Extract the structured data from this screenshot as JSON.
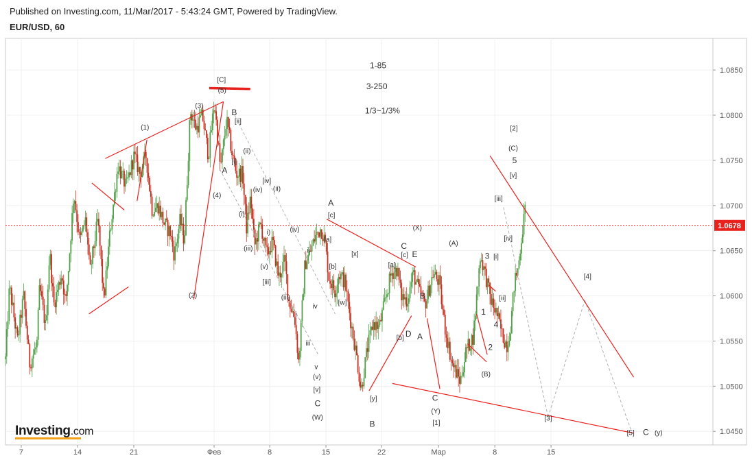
{
  "header": {
    "published": "Published on Investing.com, 11/Mar/2017 - 5:43:24 GMT, Powered by TradingView.",
    "symbol": "EUR/USD, 60"
  },
  "logo": {
    "name": "Investing",
    "suffix": ".com"
  },
  "colors": {
    "up": "#52a049",
    "down": "#c4301f",
    "wave_line": "#e8211d",
    "dashed": "#b0b0b0",
    "price_tag_bg": "#e8211d",
    "axis_text": "#555555",
    "frame": "#c8c8c8"
  },
  "chart_data": {
    "type": "candlestick",
    "ylim": [
      1.0435,
      1.0885
    ],
    "y_ticks": [
      "1.0450",
      "1.0500",
      "1.0550",
      "1.0600",
      "1.0650",
      "1.0700",
      "1.0750",
      "1.0800",
      "1.0850"
    ],
    "x_tick_labels": [
      "7",
      "14",
      "21",
      "Фев",
      "8",
      "15",
      "22",
      "Мар",
      "8",
      "15"
    ],
    "current_price": "1.0678",
    "notes": [
      "1-85",
      "3-250",
      "1/3~1/3%"
    ],
    "price_path": [
      [
        0.0,
        1.053
      ],
      [
        0.01,
        1.061
      ],
      [
        0.03,
        1.055
      ],
      [
        0.045,
        1.06
      ],
      [
        0.06,
        1.0525
      ],
      [
        0.078,
        1.0545
      ],
      [
        0.085,
        1.061
      ],
      [
        0.1,
        1.0565
      ],
      [
        0.11,
        1.065
      ],
      [
        0.12,
        1.059
      ],
      [
        0.14,
        1.0625
      ],
      [
        0.15,
        1.059
      ],
      [
        0.16,
        1.065
      ],
      [
        0.17,
        1.0715
      ],
      [
        0.185,
        1.066
      ],
      [
        0.2,
        1.0685
      ],
      [
        0.21,
        1.0625
      ],
      [
        0.23,
        1.0685
      ],
      [
        0.245,
        1.0595
      ],
      [
        0.26,
        1.067
      ],
      [
        0.28,
        1.0745
      ],
      [
        0.3,
        1.072
      ],
      [
        0.32,
        1.0755
      ],
      [
        0.335,
        1.0735
      ],
      [
        0.35,
        1.0755
      ],
      [
        0.365,
        1.0695
      ],
      [
        0.38,
        1.07
      ],
      [
        0.395,
        1.068
      ],
      [
        0.41,
        1.067
      ],
      [
        0.42,
        1.0645
      ],
      [
        0.435,
        1.0685
      ],
      [
        0.445,
        1.066
      ],
      [
        0.46,
        1.0805
      ],
      [
        0.475,
        1.0785
      ],
      [
        0.49,
        1.08
      ],
      [
        0.505,
        1.0755
      ],
      [
        0.52,
        1.0815
      ],
      [
        0.535,
        1.074
      ],
      [
        0.55,
        1.0795
      ],
      [
        0.565,
        1.0755
      ],
      [
        0.575,
        1.0735
      ],
      [
        0.59,
        1.0735
      ],
      [
        0.6,
        1.0675
      ],
      [
        0.61,
        1.071
      ],
      [
        0.62,
        1.0655
      ],
      [
        0.635,
        1.068
      ],
      [
        0.65,
        1.0645
      ],
      [
        0.665,
        1.066
      ],
      [
        0.68,
        1.062
      ],
      [
        0.695,
        1.064
      ],
      [
        0.705,
        1.0595
      ],
      [
        0.72,
        1.0575
      ],
      [
        0.73,
        1.0525
      ],
      [
        0.745,
        1.0635
      ],
      [
        0.76,
        1.065
      ],
      [
        0.77,
        1.0665
      ],
      [
        0.785,
        1.0675
      ],
      [
        0.795,
        1.066
      ],
      [
        0.805,
        1.062
      ],
      [
        0.82,
        1.0605
      ],
      [
        0.83,
        1.0625
      ],
      [
        0.845,
        1.0615
      ],
      [
        0.86,
        1.057
      ],
      [
        0.875,
        1.053
      ],
      [
        0.885,
        1.0495
      ],
      [
        0.9,
        1.054
      ],
      [
        0.915,
        1.057
      ],
      [
        0.93,
        1.0565
      ],
      [
        0.945,
        1.0595
      ],
      [
        0.96,
        1.0625
      ],
      [
        0.975,
        1.063
      ],
      [
        0.985,
        1.06
      ],
      [
        1.0,
        1.0595
      ]
    ],
    "price_path_2": [
      [
        0.0,
        1.0595
      ],
      [
        0.05,
        1.0625
      ],
      [
        0.1,
        1.0605
      ],
      [
        0.15,
        1.059
      ],
      [
        0.22,
        1.0625
      ],
      [
        0.27,
        1.0615
      ],
      [
        0.32,
        1.0565
      ],
      [
        0.38,
        1.0525
      ],
      [
        0.45,
        1.0505
      ],
      [
        0.5,
        1.054
      ],
      [
        0.56,
        1.0555
      ],
      [
        0.62,
        1.0645
      ],
      [
        0.66,
        1.0625
      ],
      [
        0.71,
        1.0595
      ],
      [
        0.76,
        1.058
      ],
      [
        0.81,
        1.0555
      ],
      [
        0.85,
        1.0545
      ],
      [
        0.88,
        1.057
      ],
      [
        0.91,
        1.0615
      ],
      [
        0.94,
        1.063
      ],
      [
        0.97,
        1.0665
      ],
      [
        1.0,
        1.0695
      ]
    ],
    "price_path_2_span": [
      0.568,
      0.918
    ],
    "wave_labels": [
      {
        "text": "[C]",
        "x": 0.3053,
        "y": 1.0837
      },
      {
        "text": "(5)",
        "x": 0.3062,
        "y": 1.0825
      },
      {
        "text": "(3)",
        "x": 0.2739,
        "y": 1.0808
      },
      {
        "text": "B",
        "x": 0.3233,
        "y": 1.08
      },
      {
        "text": "[ii]",
        "x": 0.3287,
        "y": 1.0791
      },
      {
        "text": "(1)",
        "x": 0.1971,
        "y": 1.0784
      },
      {
        "text": "(ii)",
        "x": 0.3413,
        "y": 1.0758
      },
      {
        "text": "[i]",
        "x": 0.3233,
        "y": 1.0746
      },
      {
        "text": "A",
        "x": 0.3098,
        "y": 1.0736
      },
      {
        "text": "[iv]",
        "x": 0.3693,
        "y": 1.0725
      },
      {
        "text": "(ii)",
        "x": 0.3836,
        "y": 1.0716
      },
      {
        "text": "(iv)",
        "x": 0.3566,
        "y": 1.0715
      },
      {
        "text": "(4)",
        "x": 0.2989,
        "y": 1.0709
      },
      {
        "text": "(i)",
        "x": 0.3341,
        "y": 1.0688
      },
      {
        "text": "(iii)",
        "x": 0.3432,
        "y": 1.065
      },
      {
        "text": "i)",
        "x": 0.3719,
        "y": 1.0668
      },
      {
        "text": "(v)",
        "x": 0.3657,
        "y": 1.063
      },
      {
        "text": "[iii]",
        "x": 0.3693,
        "y": 1.0613
      },
      {
        "text": "(iv)",
        "x": 0.4088,
        "y": 1.0671
      },
      {
        "text": "ii",
        "x": 0.4285,
        "y": 1.0648
      },
      {
        "text": "(iii)",
        "x": 0.3961,
        "y": 1.0596
      },
      {
        "text": "iv",
        "x": 0.4375,
        "y": 1.0586
      },
      {
        "text": "i",
        "x": 0.4106,
        "y": 1.0577
      },
      {
        "text": "iii",
        "x": 0.4276,
        "y": 1.0545
      },
      {
        "text": "(2)",
        "x": 0.2649,
        "y": 1.0598
      },
      {
        "text": "v",
        "x": 0.4393,
        "y": 1.0519
      },
      {
        "text": "(v)",
        "x": 0.4402,
        "y": 1.0508
      },
      {
        "text": "[v]",
        "x": 0.4402,
        "y": 1.0494
      },
      {
        "text": "C",
        "x": 0.4411,
        "y": 1.0478
      },
      {
        "text": "(W)",
        "x": 0.4411,
        "y": 1.0463
      },
      {
        "text": "A",
        "x": 0.46,
        "y": 1.07
      },
      {
        "text": "[c]",
        "x": 0.4609,
        "y": 1.0687
      },
      {
        "text": "[a]",
        "x": 0.4555,
        "y": 1.066
      },
      {
        "text": "[b]",
        "x": 0.4627,
        "y": 1.063
      },
      {
        "text": "[x]",
        "x": 0.4941,
        "y": 1.0644
      },
      {
        "text": "[w]",
        "x": 0.4762,
        "y": 1.059
      },
      {
        "text": "B",
        "x": 0.5184,
        "y": 1.0455
      },
      {
        "text": "[y]",
        "x": 0.5202,
        "y": 1.0484
      },
      {
        "text": "[a]",
        "x": 0.5462,
        "y": 1.0632
      },
      {
        "text": "[b]",
        "x": 0.5579,
        "y": 1.0551
      },
      {
        "text": "D",
        "x": 0.5696,
        "y": 1.0555
      },
      {
        "text": "C",
        "x": 0.5633,
        "y": 1.0652
      },
      {
        "text": "[c]",
        "x": 0.5642,
        "y": 1.0643
      },
      {
        "text": "E",
        "x": 0.5786,
        "y": 1.0643
      },
      {
        "text": "(X)",
        "x": 0.5822,
        "y": 1.0673
      },
      {
        "text": "B",
        "x": 0.5894,
        "y": 1.0597
      },
      {
        "text": "A",
        "x": 0.5858,
        "y": 1.0552
      },
      {
        "text": "C",
        "x": 0.6073,
        "y": 1.0484
      },
      {
        "text": "(Y)",
        "x": 0.6082,
        "y": 1.047
      },
      {
        "text": "[1]",
        "x": 0.6091,
        "y": 1.0457
      },
      {
        "text": "(A)",
        "x": 0.6334,
        "y": 1.0656
      },
      {
        "text": "3",
        "x": 0.681,
        "y": 1.0641
      },
      {
        "text": "[i]",
        "x": 0.6935,
        "y": 1.0641
      },
      {
        "text": "[iv]",
        "x": 0.7106,
        "y": 1.0661
      },
      {
        "text": "[iii]",
        "x": 0.6971,
        "y": 1.0705
      },
      {
        "text": "[ii]",
        "x": 0.7025,
        "y": 1.0595
      },
      {
        "text": "1",
        "x": 0.6756,
        "y": 1.0579
      },
      {
        "text": "4",
        "x": 0.6935,
        "y": 1.0565
      },
      {
        "text": "2",
        "x": 0.6855,
        "y": 1.054
      },
      {
        "text": "(B)",
        "x": 0.6792,
        "y": 1.0511
      },
      {
        "text": "[v]",
        "x": 0.7178,
        "y": 1.0731
      },
      {
        "text": "5",
        "x": 0.7196,
        "y": 1.0747
      },
      {
        "text": "(C)",
        "x": 0.7178,
        "y": 1.0761
      },
      {
        "text": "[2]",
        "x": 0.7187,
        "y": 1.0783
      },
      {
        "text": "[4]",
        "x": 0.8228,
        "y": 1.0619
      },
      {
        "text": "[3]",
        "x": 0.7672,
        "y": 1.0462
      },
      {
        "text": "[5]",
        "x": 0.8838,
        "y": 1.0446
      },
      {
        "text": "C",
        "x": 0.9053,
        "y": 1.0446
      },
      {
        "text": "(y)",
        "x": 0.9232,
        "y": 1.0446
      }
    ],
    "wave_lines": [
      [
        [
          0.141,
          1.0752
        ],
        [
          0.308,
          1.0815
        ]
      ],
      [
        [
          0.266,
          1.0596
        ],
        [
          0.308,
          1.0815
        ]
      ],
      [
        [
          0.186,
          1.0705
        ],
        [
          0.2,
          1.0773
        ]
      ],
      [
        [
          0.122,
          1.0725
        ],
        [
          0.168,
          1.0695
        ]
      ],
      [
        [
          0.118,
          1.058
        ],
        [
          0.174,
          1.061
        ]
      ],
      [
        [
          0.454,
          1.0685
        ],
        [
          0.58,
          1.0632
        ]
      ],
      [
        [
          0.514,
          1.0495
        ],
        [
          0.574,
          1.0578
        ]
      ],
      [
        [
          0.596,
          1.0575
        ],
        [
          0.614,
          1.0497
        ]
      ],
      [
        [
          0.666,
          1.058
        ],
        [
          0.681,
          1.0535
        ]
      ],
      [
        [
          0.653,
          1.0547
        ],
        [
          0.68,
          1.0527
        ]
      ],
      [
        [
          0.683,
          1.0612
        ],
        [
          0.693,
          1.0605
        ]
      ],
      [
        [
          0.547,
          1.0503
        ],
        [
          0.888,
          1.0448
        ]
      ],
      [
        [
          0.685,
          1.0755
        ],
        [
          0.888,
          1.051
        ]
      ]
    ],
    "top_marker": [
      [
        0.288,
        1.083
      ],
      [
        0.346,
        1.0829
      ]
    ],
    "dashed_lines": [
      [
        [
          0.324,
          1.08
        ],
        [
          0.466,
          1.058
        ]
      ],
      [
        [
          0.303,
          1.074
        ],
        [
          0.442,
          1.0535
        ]
      ],
      [
        [
          0.704,
          1.0698
        ],
        [
          0.767,
          1.0466
        ]
      ],
      [
        [
          0.767,
          1.0466
        ],
        [
          0.819,
          1.0595
        ]
      ],
      [
        [
          0.819,
          1.0595
        ],
        [
          0.884,
          1.0452
        ]
      ]
    ]
  }
}
